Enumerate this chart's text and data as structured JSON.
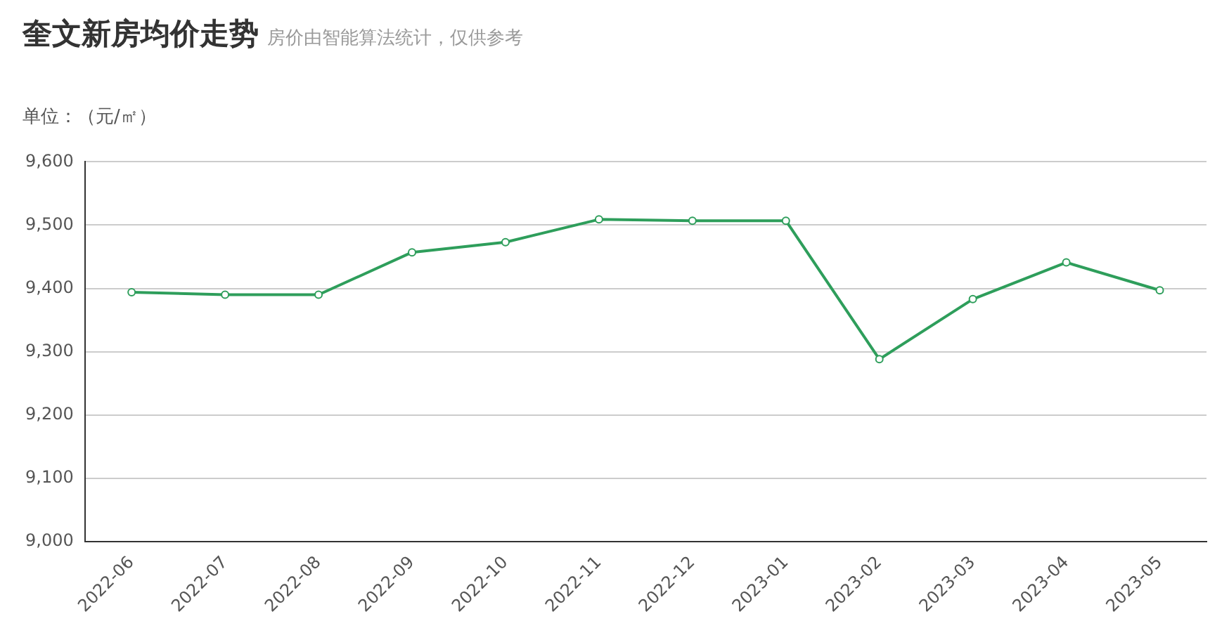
{
  "chart_data": {
    "type": "line",
    "title": "奎文新房均价走势",
    "subtitle": "房价由智能算法统计，仅供参考",
    "ylabel": "单位：（元/㎡）",
    "categories": [
      "2022-06",
      "2022-07",
      "2022-08",
      "2022-09",
      "2022-10",
      "2022-11",
      "2022-12",
      "2023-01",
      "2023-02",
      "2023-03",
      "2023-04",
      "2023-05"
    ],
    "series": [
      {
        "color": "#2e9e5b",
        "values": [
          9394,
          9390,
          9390,
          9457,
          9473,
          9509,
          9507,
          9507,
          9288,
          9383,
          9441,
          9397
        ]
      }
    ],
    "ylim": [
      9000,
      9600
    ],
    "yticks": [
      {
        "value": 9000,
        "label": "9,000"
      },
      {
        "value": 9100,
        "label": "9,100"
      },
      {
        "value": 9200,
        "label": "9,200"
      },
      {
        "value": 9300,
        "label": "9,300"
      },
      {
        "value": 9400,
        "label": "9,400"
      },
      {
        "value": 9500,
        "label": "9,500"
      },
      {
        "value": 9600,
        "label": "9,600"
      }
    ],
    "grid": "y",
    "legend": false,
    "marker": "circle",
    "line_style": "solid"
  }
}
